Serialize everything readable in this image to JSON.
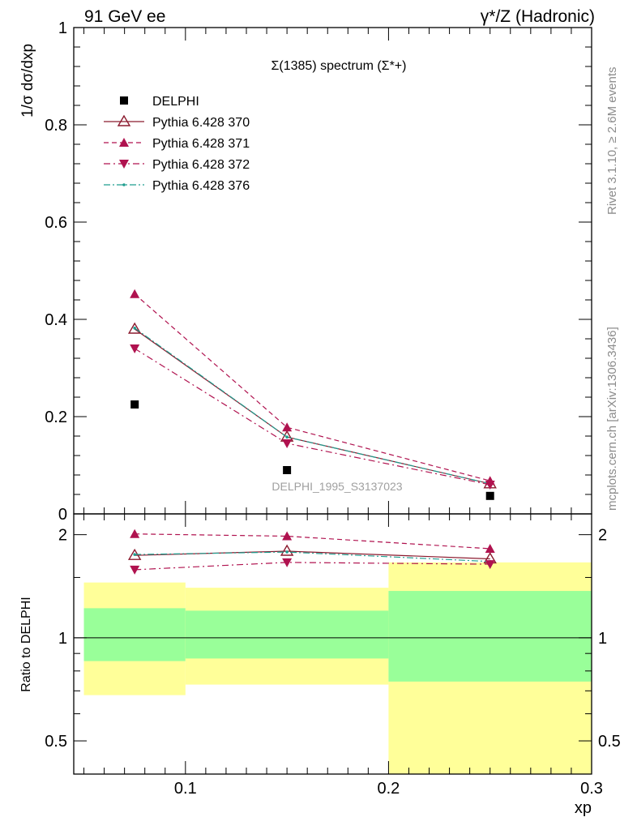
{
  "header": {
    "left": "91 GeV ee",
    "right": "γ*/Z (Hadronic)"
  },
  "side_text": {
    "rivet": "Rivet 3.1.10, ≥ 2.6M events",
    "mcplots": "mcplots.cern.ch [arXiv:1306.3436]"
  },
  "chart_data": [
    {
      "type": "scatter",
      "title": "Σ(1385) spectrum (Σ*+)",
      "ylabel": "1/σ dσ/dxp",
      "xlim": [
        0.045,
        0.3
      ],
      "ylim": [
        0,
        1.0
      ],
      "y_ticks": [
        0,
        0.2,
        0.4,
        0.6,
        0.8,
        1
      ],
      "y_tick_labels": [
        "0",
        "0.2",
        "0.4",
        "0.6",
        "0.8",
        "1"
      ],
      "reference": "DELPHI_1995_S3137023",
      "legend": [
        "DELPHI",
        "Pythia 6.428 370",
        "Pythia 6.428 371",
        "Pythia 6.428 372",
        "Pythia 6.428 376"
      ],
      "bins": [
        [
          0.05,
          0.1
        ],
        [
          0.1,
          0.2
        ],
        [
          0.2,
          0.3
        ]
      ],
      "x": [
        0.075,
        0.15,
        0.25
      ],
      "series": [
        {
          "name": "DELPHI",
          "values": [
            0.225,
            0.09,
            0.037
          ],
          "color": "#000000",
          "style": "data"
        },
        {
          "name": "Pythia 6.428 370",
          "values": [
            0.38,
            0.158,
            0.062
          ],
          "color": "#8b1a2e",
          "style": "solid-open-triangle"
        },
        {
          "name": "Pythia 6.428 371",
          "values": [
            0.452,
            0.178,
            0.068
          ],
          "color": "#b0124f",
          "style": "dashed-triangle-up"
        },
        {
          "name": "Pythia 6.428 372",
          "values": [
            0.34,
            0.145,
            0.06
          ],
          "color": "#b0124f",
          "style": "dashdot-triangle-down"
        },
        {
          "name": "Pythia 6.428 376",
          "values": [
            0.382,
            0.158,
            0.062
          ],
          "color": "#1f9e8f",
          "style": "dashdot-dot"
        }
      ]
    },
    {
      "type": "line",
      "ylabel": "Ratio to DELPHI",
      "xlabel": "xp",
      "xlim": [
        0.045,
        0.3
      ],
      "ylim": [
        0.4,
        2.3
      ],
      "x_ticks": [
        0.1,
        0.2,
        0.3
      ],
      "x_tick_labels": [
        "0.1",
        "0.2",
        "0.3"
      ],
      "y_ticks": [
        0.5,
        1,
        2
      ],
      "y_tick_labels": [
        "0.5",
        "1",
        "2"
      ],
      "bands": [
        {
          "x": [
            0.05,
            0.1
          ],
          "green": [
            0.855,
            1.22
          ],
          "yellow": [
            0.68,
            1.45
          ]
        },
        {
          "x": [
            0.1,
            0.2
          ],
          "green": [
            0.87,
            1.2
          ],
          "yellow": [
            0.73,
            1.4
          ]
        },
        {
          "x": [
            0.2,
            0.3
          ],
          "green": [
            0.745,
            1.37
          ],
          "yellow": [
            0.35,
            1.66
          ]
        }
      ],
      "x": [
        0.075,
        0.15,
        0.25
      ],
      "series": [
        {
          "name": "Pythia 6.428 370",
          "values": [
            1.74,
            1.79,
            1.7
          ]
        },
        {
          "name": "Pythia 6.428 371",
          "values": [
            2.01,
            1.98,
            1.82
          ]
        },
        {
          "name": "Pythia 6.428 372",
          "values": [
            1.58,
            1.66,
            1.64
          ]
        },
        {
          "name": "Pythia 6.428 376",
          "values": [
            1.75,
            1.78,
            1.67
          ]
        }
      ]
    }
  ]
}
